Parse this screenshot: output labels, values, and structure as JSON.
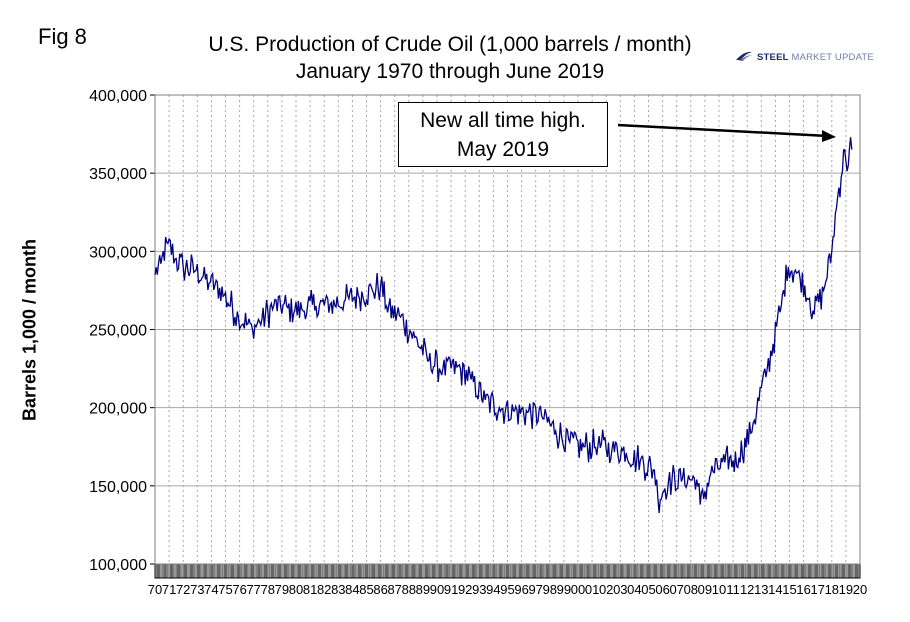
{
  "figure_label": "Fig 8",
  "logo": {
    "steel": "STEEL",
    "rest": " MARKET UPDATE"
  },
  "colors": {
    "series": "#000080",
    "grid": "#a6a6a6",
    "axis": "#808080"
  },
  "chart_data": {
    "type": "line",
    "title": "U.S. Production of Crude Oil (1,000 barrels / month)",
    "subtitle": "January 1970 through June 2019",
    "ylabel": "Barrels 1,000 / month",
    "xlabel": "",
    "ylim": [
      100000,
      400000
    ],
    "yticks": [
      "100,000",
      "150,000",
      "200,000",
      "250,000",
      "300,000",
      "350,000",
      "400,000"
    ],
    "xticks": [
      "70",
      "71",
      "72",
      "73",
      "74",
      "75",
      "76",
      "77",
      "78",
      "79",
      "80",
      "81",
      "82",
      "83",
      "84",
      "85",
      "86",
      "87",
      "88",
      "89",
      "90",
      "91",
      "92",
      "93",
      "94",
      "95",
      "96",
      "97",
      "98",
      "99",
      "00",
      "01",
      "02",
      "03",
      "04",
      "05",
      "06",
      "07",
      "08",
      "09",
      "10",
      "11",
      "12",
      "13",
      "14",
      "15",
      "16",
      "17",
      "18",
      "19",
      "20"
    ],
    "grid": "vertical and horizontal",
    "annotation": {
      "line1": "New all time high.",
      "line2": "May 2019"
    },
    "x": [
      "1970-01",
      "1970-06",
      "1970-12",
      "1971-06",
      "1972-01",
      "1972-12",
      "1973-12",
      "1974-12",
      "1975-12",
      "1976-12",
      "1977-06",
      "1978-06",
      "1979-06",
      "1980-06",
      "1981-06",
      "1982-06",
      "1983-06",
      "1984-06",
      "1985-06",
      "1986-01",
      "1986-06",
      "1987-06",
      "1988-06",
      "1989-06",
      "1990-06",
      "1991-06",
      "1992-06",
      "1993-06",
      "1994-06",
      "1995-06",
      "1996-06",
      "1997-06",
      "1998-06",
      "1999-06",
      "2000-06",
      "2001-06",
      "2002-06",
      "2003-06",
      "2004-06",
      "2005-06",
      "2005-09",
      "2006-06",
      "2007-06",
      "2008-06",
      "2008-09",
      "2009-06",
      "2010-06",
      "2011-06",
      "2012-06",
      "2013-06",
      "2014-06",
      "2014-12",
      "2015-06",
      "2016-06",
      "2016-09",
      "2017-06",
      "2018-01",
      "2018-06",
      "2018-12",
      "2019-03",
      "2019-05",
      "2019-06"
    ],
    "values": [
      285000,
      292000,
      305000,
      295000,
      290000,
      288000,
      280000,
      272000,
      258000,
      250000,
      255000,
      265000,
      264000,
      263000,
      265000,
      266000,
      268000,
      272000,
      275000,
      278000,
      265000,
      258000,
      245000,
      230000,
      225000,
      226000,
      218000,
      205000,
      200000,
      198000,
      197000,
      195000,
      185000,
      178000,
      175000,
      176000,
      174000,
      171000,
      166000,
      160000,
      142000,
      153000,
      155000,
      154000,
      138000,
      158000,
      165000,
      168000,
      190000,
      225000,
      265000,
      290000,
      288000,
      270000,
      262000,
      275000,
      300000,
      335000,
      365000,
      355000,
      373000,
      365000
    ]
  }
}
